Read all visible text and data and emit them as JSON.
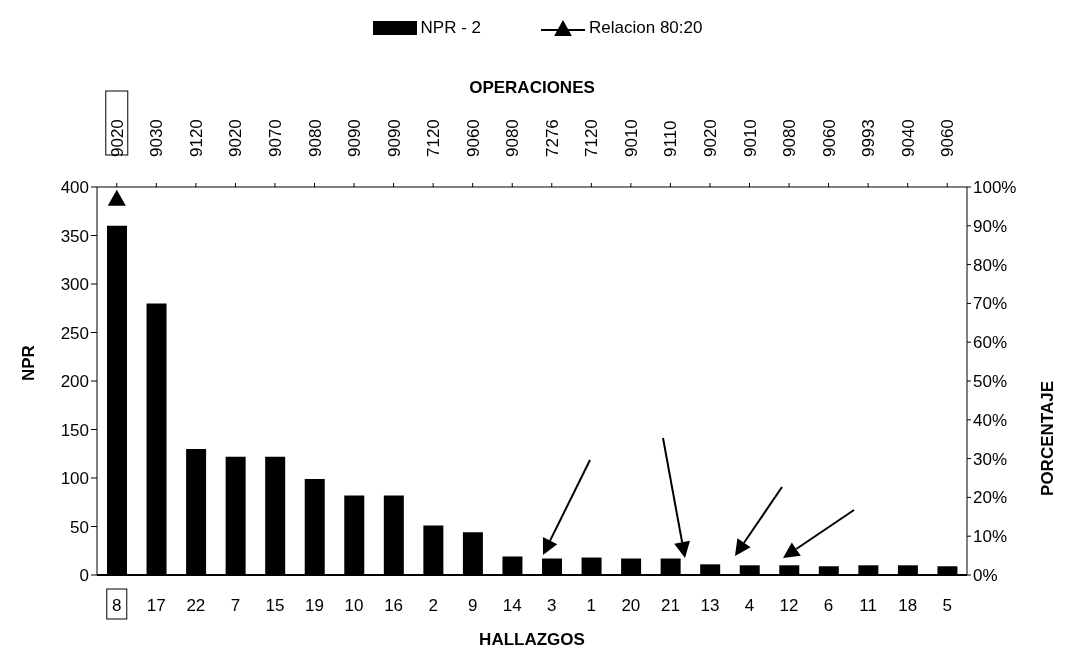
{
  "chart_data": {
    "type": "bar",
    "categories": [
      "8",
      "17",
      "22",
      "7",
      "15",
      "19",
      "10",
      "16",
      "2",
      "9",
      "14",
      "3",
      "1",
      "20",
      "21",
      "13",
      "4",
      "12",
      "6",
      "11",
      "18",
      "5"
    ],
    "annotations": [
      "9020",
      "9030",
      "9120",
      "9020",
      "9070",
      "9080",
      "9090",
      "9090",
      "7120",
      "9060",
      "9080",
      "7276",
      "7120",
      "9010",
      "9110",
      "9020",
      "9010",
      "9080",
      "9060",
      "9993",
      "9040",
      "9060"
    ],
    "x2label": "OPERACIONES",
    "xlabel": "HALLAZGOS",
    "ylabel": "NPR",
    "y2label": "PORCENTAJE",
    "series": [
      {
        "name": "NPR - 2",
        "color": "#000000",
        "values": [
          360,
          280,
          130,
          122,
          122,
          99,
          82,
          82,
          51,
          44,
          19,
          17,
          18,
          17,
          17,
          11,
          10,
          10,
          9,
          10,
          10,
          9
        ]
      },
      {
        "name": "Relacion 80:20",
        "type": "line",
        "axis": "y2",
        "color": "#000000",
        "marker": "triangle",
        "values": [
          97,
          null,
          null,
          null,
          null,
          null,
          null,
          null,
          null,
          null,
          null,
          null,
          null,
          null,
          null,
          null,
          null,
          null,
          null,
          null,
          null,
          null
        ]
      }
    ],
    "ylim": [
      0,
      400
    ],
    "yticks": [
      0,
      50,
      100,
      150,
      200,
      250,
      300,
      350,
      400
    ],
    "y2lim": [
      0,
      100
    ],
    "y2ticks": [
      {
        "value": 0,
        "label": "0%"
      },
      {
        "value": 10,
        "label": "10%"
      },
      {
        "value": 20,
        "label": "20%"
      },
      {
        "value": 30,
        "label": "30%"
      },
      {
        "value": 40,
        "label": "40%"
      },
      {
        "value": 50,
        "label": "50%"
      },
      {
        "value": 60,
        "label": "60%"
      },
      {
        "value": 70,
        "label": "70%"
      },
      {
        "value": 80,
        "label": "80%"
      },
      {
        "value": 90,
        "label": "90%"
      },
      {
        "value": 100,
        "label": "100%"
      }
    ],
    "grid": false,
    "legend": "top"
  }
}
